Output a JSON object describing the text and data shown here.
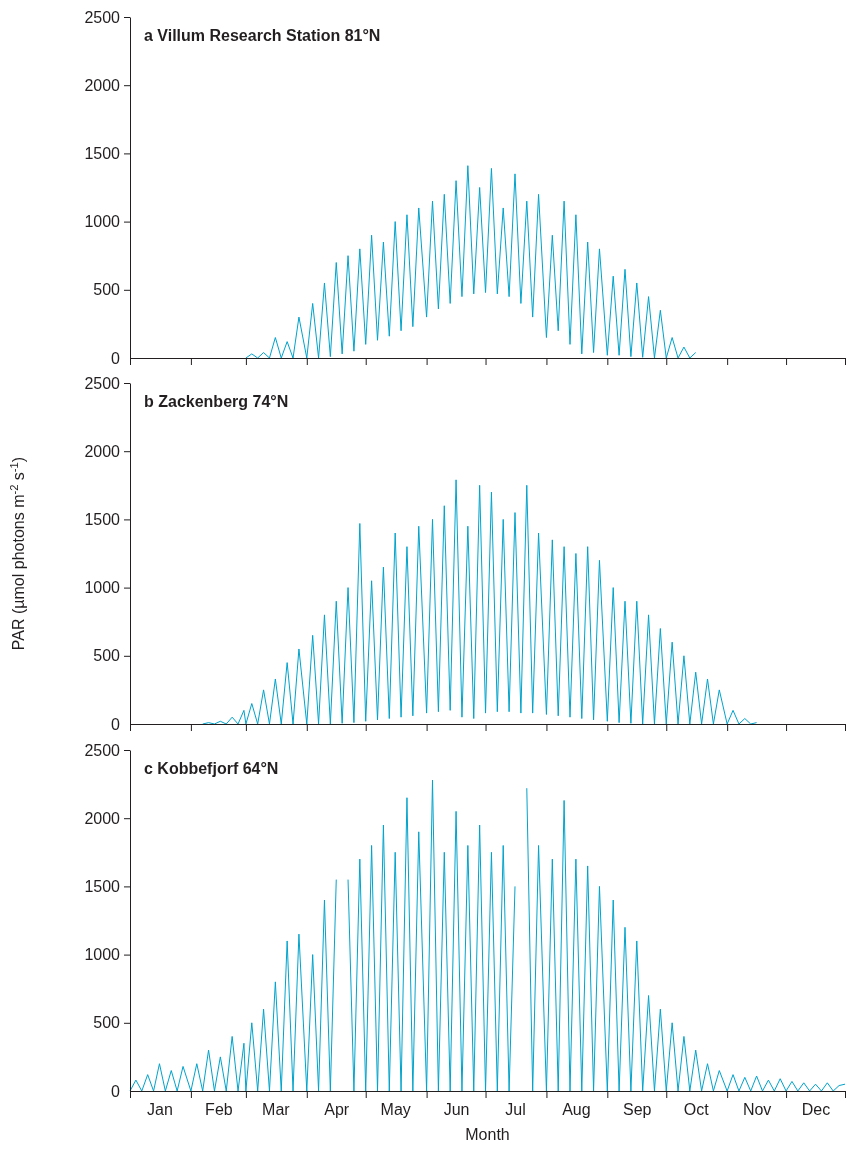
{
  "chart_data": [
    {
      "type": "line",
      "title": "a Villum Research Station 81°N",
      "xlim": [
        "--01-01",
        "--12-31"
      ],
      "ylim": [
        0,
        2500
      ],
      "yticks": [
        0,
        500,
        1000,
        1500,
        2000,
        2500
      ],
      "tick_labels": "y",
      "xticks": [
        {
          "value": "--01-01",
          "label": null
        },
        {
          "value": "--02-01",
          "label": null
        },
        {
          "value": "--03-01",
          "label": null
        },
        {
          "value": "--04-01",
          "label": null
        },
        {
          "value": "--05-01",
          "label": null
        },
        {
          "value": "--06-01",
          "label": null
        },
        {
          "value": "--07-01",
          "label": null
        },
        {
          "value": "--08-01",
          "label": null
        },
        {
          "value": "--09-01",
          "label": null
        },
        {
          "value": "--10-01",
          "label": null
        },
        {
          "value": "--11-01",
          "label": null
        },
        {
          "value": "--12-01",
          "label": null
        },
        {
          "value": "--12-31",
          "label": null
        }
      ],
      "series": [
        {
          "color": "#00a3cc",
          "x": [
            "--03-01",
            "--03-04",
            "--03-07",
            "--03-10",
            "--03-13",
            "--03-16",
            "--03-19",
            "--03-22",
            "--03-25",
            "--03-28",
            "--04-01",
            "--04-04",
            "--04-07",
            "--04-10",
            "--04-13",
            "--04-16",
            "--04-19",
            "--04-22",
            "--04-25",
            "--04-28",
            "--05-01",
            "--05-04",
            "--05-07",
            "--05-10",
            "--05-13",
            "--05-16",
            "--05-19",
            "--05-22",
            "--05-25",
            "--05-28",
            "--06-01",
            "--06-04",
            "--06-07",
            "--06-10",
            "--06-13",
            "--06-16",
            "--06-19",
            "--06-22",
            "--06-25",
            "--06-28",
            "--07-01",
            "--07-04",
            "--07-07",
            "--07-10",
            "--07-13",
            "--07-16",
            "--07-19",
            "--07-22",
            "--07-25",
            "--07-28",
            "--08-01",
            "--08-04",
            "--08-07",
            "--08-10",
            "--08-13",
            "--08-16",
            "--08-19",
            "--08-22",
            "--08-25",
            "--08-28",
            "--09-01",
            "--09-04",
            "--09-07",
            "--09-10",
            "--09-13",
            "--09-16",
            "--09-19",
            "--09-22",
            "--09-25",
            "--09-28",
            "--10-01",
            "--10-04",
            "--10-07",
            "--10-10",
            "--10-13",
            "--10-16"
          ],
          "values": [
            0,
            30,
            0,
            40,
            0,
            150,
            0,
            120,
            0,
            300,
            0,
            400,
            0,
            550,
            10,
            700,
            30,
            750,
            50,
            800,
            100,
            900,
            130,
            850,
            160,
            1000,
            200,
            1050,
            230,
            1100,
            300,
            1150,
            360,
            1200,
            400,
            1300,
            450,
            1410,
            470,
            1250,
            480,
            1390,
            470,
            1100,
            450,
            1350,
            400,
            1150,
            300,
            1200,
            150,
            900,
            200,
            1150,
            100,
            1050,
            30,
            850,
            40,
            800,
            20,
            600,
            20,
            650,
            10,
            550,
            5,
            450,
            0,
            350,
            0,
            150,
            0,
            80,
            0,
            40
          ]
        }
      ]
    },
    {
      "type": "line",
      "title": "b Zackenberg 74°N",
      "ylabel": "PAR (µmol photons m$^{-2}$ s$^{-1}$)",
      "xlim": [
        "--01-01",
        "--12-31"
      ],
      "ylim": [
        0,
        2500
      ],
      "yticks": [
        0,
        500,
        1000,
        1500,
        2000,
        2500
      ],
      "tick_labels": "y",
      "xticks": [
        {
          "value": "--01-01",
          "label": null
        },
        {
          "value": "--02-01",
          "label": null
        },
        {
          "value": "--03-01",
          "label": null
        },
        {
          "value": "--04-01",
          "label": null
        },
        {
          "value": "--05-01",
          "label": null
        },
        {
          "value": "--06-01",
          "label": null
        },
        {
          "value": "--07-01",
          "label": null
        },
        {
          "value": "--08-01",
          "label": null
        },
        {
          "value": "--09-01",
          "label": null
        },
        {
          "value": "--10-01",
          "label": null
        },
        {
          "value": "--11-01",
          "label": null
        },
        {
          "value": "--12-01",
          "label": null
        },
        {
          "value": "--12-31",
          "label": null
        }
      ],
      "series": [
        {
          "color": "#00a3cc",
          "x": [
            "--02-07",
            "--02-10",
            "--02-13",
            "--02-16",
            "--02-19",
            "--02-22",
            "--02-25",
            "--02-28",
            "--03-01",
            "--03-04",
            "--03-07",
            "--03-10",
            "--03-13",
            "--03-16",
            "--03-19",
            "--03-22",
            "--03-25",
            "--03-28",
            "--04-01",
            "--04-04",
            "--04-07",
            "--04-10",
            "--04-13",
            "--04-16",
            "--04-19",
            "--04-22",
            "--04-25",
            "--04-28",
            "--05-01",
            "--05-04",
            "--05-07",
            "--05-10",
            "--05-13",
            "--05-16",
            "--05-19",
            "--05-22",
            "--05-25",
            "--05-28",
            "--06-01",
            "--06-04",
            "--06-07",
            "--06-10",
            "--06-13",
            "--06-16",
            "--06-19",
            "--06-22",
            "--06-25",
            "--06-28",
            "--07-01",
            "--07-04",
            "--07-07",
            "--07-10",
            "--07-13",
            "--07-16",
            "--07-19",
            "--07-22",
            "--07-25",
            "--07-28",
            "--08-01",
            "--08-04",
            "--08-07",
            "--08-10",
            "--08-13",
            "--08-16",
            "--08-19",
            "--08-22",
            "--08-25",
            "--08-28",
            "--09-01",
            "--09-04",
            "--09-07",
            "--09-10",
            "--09-13",
            "--09-16",
            "--09-19",
            "--09-22",
            "--09-25",
            "--09-28",
            "--10-01",
            "--10-04",
            "--10-07",
            "--10-10",
            "--10-13",
            "--10-16",
            "--10-19",
            "--10-22",
            "--10-25",
            "--10-28",
            "--11-01",
            "--11-04",
            "--11-07",
            "--11-10",
            "--11-13",
            "--11-16"
          ],
          "values": [
            0,
            10,
            0,
            20,
            0,
            50,
            0,
            100,
            0,
            150,
            0,
            250,
            0,
            330,
            0,
            450,
            0,
            550,
            0,
            650,
            0,
            800,
            0,
            900,
            5,
            1000,
            10,
            1470,
            20,
            1050,
            30,
            1150,
            40,
            1400,
            50,
            1300,
            60,
            1450,
            80,
            1500,
            90,
            1600,
            100,
            1790,
            50,
            1450,
            40,
            1750,
            80,
            1700,
            90,
            1500,
            90,
            1550,
            80,
            1750,
            80,
            1400,
            70,
            1350,
            60,
            1300,
            50,
            1250,
            40,
            1300,
            30,
            1200,
            20,
            1000,
            10,
            900,
            5,
            900,
            0,
            800,
            0,
            700,
            0,
            600,
            0,
            500,
            0,
            380,
            0,
            330,
            0,
            250,
            0,
            100,
            0,
            40,
            0,
            10
          ]
        }
      ]
    },
    {
      "type": "line",
      "title": "c Kobbefjorf 64°N",
      "xlabel": "Month",
      "xlim": [
        "--01-01",
        "--12-31"
      ],
      "ylim": [
        0,
        2500
      ],
      "yticks": [
        0,
        500,
        1000,
        1500,
        2000,
        2500
      ],
      "xticks": [
        {
          "value": "--01-01",
          "label": null
        },
        {
          "value": "--01-16",
          "label": "Jan"
        },
        {
          "value": "--02-01",
          "label": null
        },
        {
          "value": "--02-15",
          "label": "Feb"
        },
        {
          "value": "--03-01",
          "label": null
        },
        {
          "value": "--03-16",
          "label": "Mar"
        },
        {
          "value": "--04-01",
          "label": null
        },
        {
          "value": "--04-16",
          "label": "Apr"
        },
        {
          "value": "--05-01",
          "label": null
        },
        {
          "value": "--05-16",
          "label": "May"
        },
        {
          "value": "--06-01",
          "label": null
        },
        {
          "value": "--06-16",
          "label": "Jun"
        },
        {
          "value": "--07-01",
          "label": null
        },
        {
          "value": "--07-16",
          "label": "Jul"
        },
        {
          "value": "--08-01",
          "label": null
        },
        {
          "value": "--08-16",
          "label": "Aug"
        },
        {
          "value": "--09-01",
          "label": null
        },
        {
          "value": "--09-16",
          "label": "Sep"
        },
        {
          "value": "--10-01",
          "label": null
        },
        {
          "value": "--10-16",
          "label": "Oct"
        },
        {
          "value": "--11-01",
          "label": null
        },
        {
          "value": "--11-16",
          "label": "Nov"
        },
        {
          "value": "--12-01",
          "label": null
        },
        {
          "value": "--12-16",
          "label": "Dec"
        },
        {
          "value": "--12-31",
          "label": null
        }
      ],
      "series": [
        {
          "color": "#00a3cc",
          "x": [
            "--01-01",
            "--01-04",
            "--01-07",
            "--01-10",
            "--01-13",
            "--01-16",
            "--01-19",
            "--01-22",
            "--01-25",
            "--01-28",
            "--02-01",
            "--02-04",
            "--02-07",
            "--02-10",
            "--02-13",
            "--02-16",
            "--02-19",
            "--02-22",
            "--02-25",
            "--02-28",
            "--03-01",
            "--03-04",
            "--03-07",
            "--03-10",
            "--03-13",
            "--03-16",
            "--03-19",
            "--03-22",
            "--03-25",
            "--03-28",
            "--04-01",
            "--04-04",
            "--04-07",
            "--04-10",
            "--04-13",
            "--04-16",
            "--04-19",
            "--04-22",
            "--04-25",
            "--04-28",
            "--05-01",
            "--05-04",
            "--05-07",
            "--05-10",
            "--05-13",
            "--05-16",
            "--05-19",
            "--05-22",
            "--05-25",
            "--05-28",
            "--06-01",
            "--06-04",
            "--06-07",
            "--06-10",
            "--06-13",
            "--06-16",
            "--06-19",
            "--06-22",
            "--06-25",
            "--06-28",
            "--07-01",
            "--07-04",
            "--07-07",
            "--07-10",
            "--07-13",
            "--07-16",
            "--07-19",
            "--07-22",
            "--07-25",
            "--07-28",
            "--08-01",
            "--08-04",
            "--08-07",
            "--08-10",
            "--08-13",
            "--08-16",
            "--08-19",
            "--08-22",
            "--08-25",
            "--08-28",
            "--09-01",
            "--09-04",
            "--09-07",
            "--09-10",
            "--09-13",
            "--09-16",
            "--09-19",
            "--09-22",
            "--09-25",
            "--09-28",
            "--10-01",
            "--10-04",
            "--10-07",
            "--10-10",
            "--10-13",
            "--10-16",
            "--10-19",
            "--10-22",
            "--10-25",
            "--10-28",
            "--11-01",
            "--11-04",
            "--11-07",
            "--11-10",
            "--11-13",
            "--11-16",
            "--11-19",
            "--11-22",
            "--11-25",
            "--11-28",
            "--12-01",
            "--12-04",
            "--12-07",
            "--12-10",
            "--12-13",
            "--12-16",
            "--12-19",
            "--12-22",
            "--12-25",
            "--12-28",
            "--12-31"
          ],
          "values": [
            0,
            80,
            0,
            120,
            0,
            200,
            0,
            150,
            0,
            180,
            0,
            200,
            0,
            300,
            0,
            250,
            0,
            400,
            0,
            350,
            0,
            500,
            0,
            600,
            0,
            800,
            0,
            1100,
            0,
            1150,
            0,
            1000,
            0,
            1400,
            0,
            1550,
            null,
            1550,
            0,
            1700,
            0,
            1800,
            0,
            1950,
            0,
            1750,
            0,
            2150,
            0,
            1900,
            0,
            2280,
            0,
            1750,
            0,
            2050,
            0,
            1800,
            0,
            1950,
            0,
            1750,
            0,
            1800,
            0,
            1500,
            null,
            2220,
            0,
            1800,
            0,
            1700,
            0,
            2130,
            0,
            1700,
            0,
            1650,
            0,
            1500,
            0,
            1400,
            0,
            1200,
            0,
            1100,
            0,
            700,
            0,
            600,
            0,
            500,
            0,
            400,
            0,
            300,
            0,
            200,
            0,
            150,
            0,
            120,
            0,
            100,
            0,
            110,
            0,
            80,
            0,
            90,
            0,
            70,
            0,
            60,
            0,
            50,
            0,
            60,
            0,
            40,
            50
          ]
        }
      ]
    }
  ]
}
